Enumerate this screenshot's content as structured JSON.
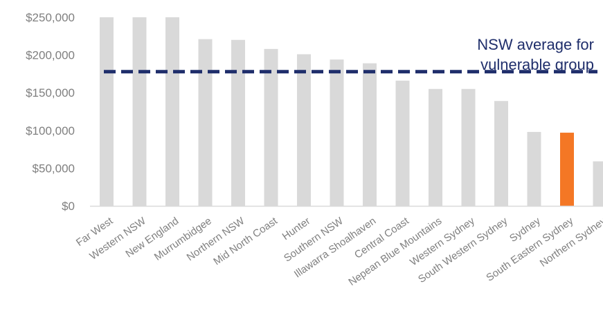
{
  "chart_data": {
    "type": "bar",
    "categories": [
      "Far West",
      "Western NSW",
      "New England",
      "Murrumbidgee",
      "Northern NSW",
      "Mid North Coast",
      "Hunter",
      "Southern NSW",
      "Illawarra Shoalhaven",
      "Central Coast",
      "Nepean Blue Mountains",
      "Western Sydney",
      "South Western Sydney",
      "Sydney",
      "South Eastern Sydney",
      "Northern Sydney"
    ],
    "values": [
      250000,
      250000,
      250000,
      221000,
      220000,
      208000,
      201000,
      194000,
      189000,
      166000,
      155000,
      155000,
      139000,
      98000,
      97000,
      59000
    ],
    "highlight_index": 14,
    "ylim": [
      0,
      250000
    ],
    "yticks": [
      0,
      50000,
      100000,
      150000,
      200000,
      250000
    ],
    "ytick_labels": [
      "$0",
      "$50,000",
      "$100,000",
      "$150,000",
      "$200,000",
      "$250,000"
    ],
    "reference_line": {
      "value": 155000,
      "label_lines": [
        "NSW average for",
        "vulnerable group"
      ]
    },
    "grid": false,
    "legend": "none",
    "colors": {
      "bar": "#d9d9d9",
      "highlight": "#f47725",
      "reference_line": "#1f2e6b",
      "text": "#7f7f7f",
      "axis": "#d9d9d9"
    }
  }
}
